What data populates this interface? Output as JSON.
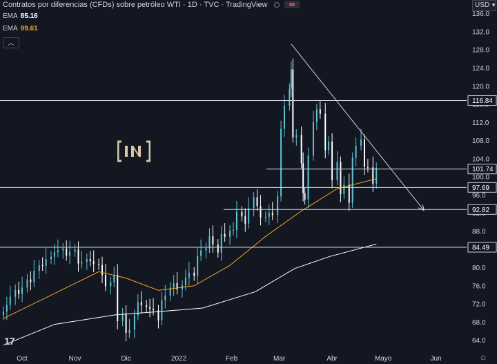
{
  "header": {
    "title": "Contratos por diferencias (CFDs) sobre petróleo WTI · 1D · TVC · TradingView",
    "ema1_label": "EMA",
    "ema1_value": "85.16",
    "ema2_label": "EMA",
    "ema2_value": "99.61",
    "currency": "USD"
  },
  "colors": {
    "background": "#131722",
    "up": "#5fc4d6",
    "down": "#ffffff",
    "ema_fast": "#f5a623",
    "ema_slow": "#ffffff",
    "level": "#d1d4dc",
    "ema1_value_color": "#ffffff",
    "ema2_value_color": "#f5a623"
  },
  "icons": {
    "tv_logo": "tradingview-logo-icon",
    "watermark": "beincrypto-logo",
    "settings": "gear-icon",
    "collapse": "chevron-up-icon"
  },
  "chart_data": {
    "type": "candlestick",
    "interval": "1D",
    "price_axis": {
      "ylim": [
        61.5,
        139
      ],
      "ticks": [
        64.0,
        68.0,
        72.0,
        76.0,
        80.0,
        84.0,
        88.0,
        92.0,
        96.0,
        100.0,
        104.0,
        108.0,
        112.0,
        116.0,
        120.0,
        124.0,
        128.0,
        132.0,
        136.0
      ]
    },
    "time_axis": {
      "xlim": [
        "2021-09-18",
        "2022-06-19"
      ],
      "ticks": [
        {
          "label": "Oct",
          "date": "2021-10-01"
        },
        {
          "label": "Nov",
          "date": "2021-11-01"
        },
        {
          "label": "Dic",
          "date": "2021-12-01"
        },
        {
          "label": "2022",
          "date": "2022-01-01"
        },
        {
          "label": "Feb",
          "date": "2022-02-01"
        },
        {
          "label": "Mar",
          "date": "2022-03-01"
        },
        {
          "label": "Abr",
          "date": "2022-04-01"
        },
        {
          "label": "Mayo",
          "date": "2022-05-01"
        },
        {
          "label": "Jun",
          "date": "2022-06-01"
        }
      ]
    },
    "closes": [
      [
        "2021-09-20",
        70.3
      ],
      [
        "2021-09-22",
        71.8
      ],
      [
        "2021-09-24",
        73.6
      ],
      [
        "2021-09-27",
        75.1
      ],
      [
        "2021-09-29",
        74.2
      ],
      [
        "2021-10-01",
        75.6
      ],
      [
        "2021-10-04",
        77.4
      ],
      [
        "2021-10-06",
        76.8
      ],
      [
        "2021-10-08",
        79.3
      ],
      [
        "2021-10-11",
        80.5
      ],
      [
        "2021-10-13",
        80.4
      ],
      [
        "2021-10-15",
        81.9
      ],
      [
        "2021-10-18",
        82.4
      ],
      [
        "2021-10-20",
        83.4
      ],
      [
        "2021-10-22",
        83.8
      ],
      [
        "2021-10-25",
        84.2
      ],
      [
        "2021-10-27",
        82.6
      ],
      [
        "2021-10-29",
        83.5
      ],
      [
        "2021-11-01",
        84.0
      ],
      [
        "2021-11-03",
        80.9
      ],
      [
        "2021-11-05",
        81.3
      ],
      [
        "2021-11-08",
        81.9
      ],
      [
        "2021-11-10",
        81.4
      ],
      [
        "2021-11-12",
        80.8
      ],
      [
        "2021-11-15",
        80.6
      ],
      [
        "2021-11-17",
        78.4
      ],
      [
        "2021-11-19",
        75.9
      ],
      [
        "2021-11-22",
        76.8
      ],
      [
        "2021-11-24",
        78.4
      ],
      [
        "2021-11-26",
        68.2
      ],
      [
        "2021-11-29",
        69.9
      ],
      [
        "2021-12-01",
        65.6
      ],
      [
        "2021-12-03",
        66.3
      ],
      [
        "2021-12-06",
        69.5
      ],
      [
        "2021-12-08",
        72.4
      ],
      [
        "2021-12-10",
        71.7
      ],
      [
        "2021-12-13",
        71.3
      ],
      [
        "2021-12-15",
        70.9
      ],
      [
        "2021-12-17",
        70.6
      ],
      [
        "2021-12-20",
        68.4
      ],
      [
        "2021-12-22",
        72.8
      ],
      [
        "2021-12-24",
        73.8
      ],
      [
        "2021-12-27",
        75.6
      ],
      [
        "2021-12-29",
        76.6
      ],
      [
        "2021-12-31",
        75.2
      ],
      [
        "2022-01-03",
        76.1
      ],
      [
        "2022-01-05",
        77.8
      ],
      [
        "2022-01-07",
        78.9
      ],
      [
        "2022-01-10",
        78.2
      ],
      [
        "2022-01-12",
        82.6
      ],
      [
        "2022-01-14",
        83.8
      ],
      [
        "2022-01-17",
        84.3
      ],
      [
        "2022-01-19",
        86.9
      ],
      [
        "2022-01-21",
        85.1
      ],
      [
        "2022-01-24",
        83.3
      ],
      [
        "2022-01-26",
        87.4
      ],
      [
        "2022-01-28",
        86.8
      ],
      [
        "2022-01-31",
        88.2
      ],
      [
        "2022-02-02",
        88.3
      ],
      [
        "2022-02-04",
        92.3
      ],
      [
        "2022-02-07",
        91.3
      ],
      [
        "2022-02-09",
        89.7
      ],
      [
        "2022-02-11",
        93.1
      ],
      [
        "2022-02-14",
        95.5
      ],
      [
        "2022-02-16",
        93.6
      ],
      [
        "2022-02-18",
        91.1
      ],
      [
        "2022-02-21",
        91.2
      ],
      [
        "2022-02-23",
        92.1
      ],
      [
        "2022-02-25",
        91.6
      ],
      [
        "2022-02-28",
        95.7
      ],
      [
        "2022-03-02",
        110.6
      ],
      [
        "2022-03-04",
        115.7
      ],
      [
        "2022-03-07",
        119.4
      ],
      [
        "2022-03-08",
        123.7
      ],
      [
        "2022-03-09",
        108.7
      ],
      [
        "2022-03-11",
        109.3
      ],
      [
        "2022-03-14",
        103.0
      ],
      [
        "2022-03-15",
        96.4
      ],
      [
        "2022-03-16",
        95.0
      ],
      [
        "2022-03-18",
        104.7
      ],
      [
        "2022-03-21",
        112.1
      ],
      [
        "2022-03-23",
        114.9
      ],
      [
        "2022-03-25",
        113.9
      ],
      [
        "2022-03-28",
        105.9
      ],
      [
        "2022-03-30",
        107.8
      ],
      [
        "2022-04-01",
        99.3
      ],
      [
        "2022-04-04",
        103.3
      ],
      [
        "2022-04-06",
        96.2
      ],
      [
        "2022-04-08",
        98.3
      ],
      [
        "2022-04-11",
        94.3
      ],
      [
        "2022-04-13",
        104.2
      ],
      [
        "2022-04-15",
        106.9
      ],
      [
        "2022-04-18",
        108.2
      ],
      [
        "2022-04-20",
        102.2
      ],
      [
        "2022-04-22",
        102.1
      ],
      [
        "2022-04-25",
        98.5
      ],
      [
        "2022-04-27",
        102.0
      ]
    ],
    "indicators": [
      {
        "type": "EMA",
        "value": 85.16,
        "color": "#ffffff"
      },
      {
        "type": "EMA",
        "value": 99.61,
        "color": "#f5a623"
      }
    ],
    "ema_fast_values": [
      [
        "2021-09-20",
        68.8
      ],
      [
        "2021-10-20",
        74.3
      ],
      [
        "2021-11-15",
        79.1
      ],
      [
        "2021-12-01",
        77.7
      ],
      [
        "2021-12-20",
        75.0
      ],
      [
        "2022-01-10",
        76.0
      ],
      [
        "2022-01-31",
        80.5
      ],
      [
        "2022-02-21",
        86.9
      ],
      [
        "2022-03-14",
        92.5
      ],
      [
        "2022-04-04",
        97.4
      ],
      [
        "2022-04-27",
        99.6
      ]
    ],
    "ema_slow_values": [
      [
        "2021-09-20",
        62.9
      ],
      [
        "2021-10-20",
        67.5
      ],
      [
        "2021-11-25",
        69.6
      ],
      [
        "2021-12-20",
        70.3
      ],
      [
        "2022-01-15",
        71.1
      ],
      [
        "2022-02-15",
        74.7
      ],
      [
        "2022-03-10",
        79.8
      ],
      [
        "2022-03-31",
        82.5
      ],
      [
        "2022-04-27",
        85.2
      ]
    ],
    "horizontal_levels": [
      {
        "price": 116.84,
        "label": "116.84"
      },
      {
        "price": 101.74,
        "label": "101.74"
      },
      {
        "price": 97.69,
        "label": "97.69"
      },
      {
        "price": 92.82,
        "label": "92.82"
      },
      {
        "price": 84.49,
        "label": "84.49"
      }
    ],
    "trendline": {
      "from": [
        "2022-03-08",
        129.3
      ],
      "to": [
        "2022-05-25",
        92.6
      ]
    }
  }
}
